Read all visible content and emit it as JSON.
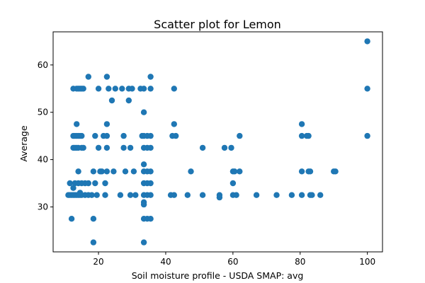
{
  "chart_data": {
    "type": "scatter",
    "title": "Scatter plot for Lemon",
    "xlabel": "Soil moisture profile - USDA SMAP: avg",
    "ylabel": "Average",
    "xlim": [
      6.5,
      104.5
    ],
    "ylim": [
      20.5,
      67
    ],
    "x_ticks": [
      20,
      40,
      60,
      80,
      100
    ],
    "y_ticks": [
      30,
      40,
      50,
      60
    ],
    "grid": false,
    "legend": "none",
    "marker_color": "#1f77b4",
    "series": [
      {
        "points": [
          [
            11,
            32.5
          ],
          [
            11.5,
            32.5
          ],
          [
            12,
            32.5
          ],
          [
            12.5,
            32.5
          ],
          [
            13,
            32.5
          ],
          [
            13.5,
            32.5
          ],
          [
            14,
            32.5
          ],
          [
            14.5,
            32.5
          ],
          [
            15,
            32.5
          ],
          [
            16,
            32.5
          ],
          [
            17,
            32.5
          ],
          [
            18,
            32.5
          ],
          [
            11.5,
            35
          ],
          [
            12,
            27.5
          ],
          [
            12.5,
            34
          ],
          [
            13,
            35
          ],
          [
            14,
            35
          ],
          [
            14.5,
            33
          ],
          [
            15,
            35
          ],
          [
            16,
            35
          ],
          [
            17,
            35
          ],
          [
            12.5,
            55
          ],
          [
            13.5,
            55
          ],
          [
            14,
            55
          ],
          [
            14.5,
            55
          ],
          [
            15,
            55
          ],
          [
            15.5,
            55
          ],
          [
            12.5,
            45
          ],
          [
            13,
            45
          ],
          [
            13.5,
            45
          ],
          [
            14,
            45
          ],
          [
            14.5,
            45
          ],
          [
            15,
            45
          ],
          [
            12.5,
            42.5
          ],
          [
            13,
            42.5
          ],
          [
            13.5,
            42.5
          ],
          [
            14,
            42.5
          ],
          [
            15,
            42.5
          ],
          [
            15.5,
            42.5
          ],
          [
            13.5,
            47.5
          ],
          [
            14,
            37.5
          ],
          [
            17,
            57.5
          ],
          [
            18.5,
            22.5
          ],
          [
            18.5,
            27.5
          ],
          [
            18.5,
            37.5
          ],
          [
            19,
            45
          ],
          [
            19,
            35
          ],
          [
            19.5,
            32.5
          ],
          [
            20,
            55
          ],
          [
            20,
            42.5
          ],
          [
            20.5,
            37.5
          ],
          [
            21,
            37.5
          ],
          [
            21.5,
            45
          ],
          [
            22,
            32.5
          ],
          [
            22,
            35
          ],
          [
            22.5,
            57.5
          ],
          [
            22.5,
            45
          ],
          [
            22.5,
            47.5
          ],
          [
            22.5,
            42.5
          ],
          [
            22.5,
            37.5
          ],
          [
            23,
            55
          ],
          [
            24,
            52.5
          ],
          [
            24.5,
            37.5
          ],
          [
            25,
            55
          ],
          [
            26.5,
            32.5
          ],
          [
            27,
            55
          ],
          [
            27.5,
            45
          ],
          [
            27.5,
            42.5
          ],
          [
            28,
            37.5
          ],
          [
            29,
            55
          ],
          [
            29,
            52.5
          ],
          [
            29.5,
            42.5
          ],
          [
            29.5,
            32.5
          ],
          [
            30,
            55
          ],
          [
            30.5,
            37.5
          ],
          [
            31,
            32.5
          ],
          [
            32.5,
            55
          ],
          [
            33,
            45
          ],
          [
            33.5,
            55
          ],
          [
            33.5,
            50
          ],
          [
            33.5,
            45
          ],
          [
            33.5,
            42.5
          ],
          [
            33.5,
            39
          ],
          [
            33.5,
            37.5
          ],
          [
            33.5,
            35
          ],
          [
            33.5,
            32.5
          ],
          [
            33.5,
            31
          ],
          [
            33.5,
            30.5
          ],
          [
            33.5,
            27.5
          ],
          [
            33.5,
            22.5
          ],
          [
            34.5,
            45
          ],
          [
            34.5,
            42.5
          ],
          [
            34.5,
            37.5
          ],
          [
            34.5,
            35
          ],
          [
            34.5,
            32.5
          ],
          [
            34.5,
            27.5
          ],
          [
            35.5,
            57.5
          ],
          [
            35.5,
            55
          ],
          [
            35.5,
            45
          ],
          [
            35.5,
            42.5
          ],
          [
            35.5,
            37.5
          ],
          [
            35.5,
            35
          ],
          [
            35.5,
            32.5
          ],
          [
            35.5,
            27.5
          ],
          [
            41.5,
            32.5
          ],
          [
            42,
            45
          ],
          [
            42.5,
            55
          ],
          [
            42.5,
            47.5
          ],
          [
            42.5,
            32.5
          ],
          [
            43,
            45
          ],
          [
            46.5,
            32.5
          ],
          [
            47.5,
            37.5
          ],
          [
            51,
            42.5
          ],
          [
            51,
            32.5
          ],
          [
            56,
            32.5
          ],
          [
            56,
            32
          ],
          [
            57.5,
            42.5
          ],
          [
            59.5,
            42.5
          ],
          [
            60,
            37.5
          ],
          [
            60,
            35
          ],
          [
            60,
            32.5
          ],
          [
            60.5,
            37.5
          ],
          [
            61,
            32.5
          ],
          [
            62,
            45
          ],
          [
            62,
            37.5
          ],
          [
            67,
            32.5
          ],
          [
            73,
            32.5
          ],
          [
            77.5,
            32.5
          ],
          [
            80.5,
            47.5
          ],
          [
            80.5,
            45
          ],
          [
            80.5,
            37.5
          ],
          [
            80.5,
            32.5
          ],
          [
            82,
            45
          ],
          [
            82.5,
            45
          ],
          [
            82.5,
            37.5
          ],
          [
            83,
            37.5
          ],
          [
            83,
            32.5
          ],
          [
            83.5,
            32.5
          ],
          [
            86,
            32.5
          ],
          [
            90,
            37.5
          ],
          [
            90.5,
            37.5
          ],
          [
            100,
            65
          ],
          [
            100,
            55
          ],
          [
            100,
            45
          ]
        ]
      }
    ]
  }
}
